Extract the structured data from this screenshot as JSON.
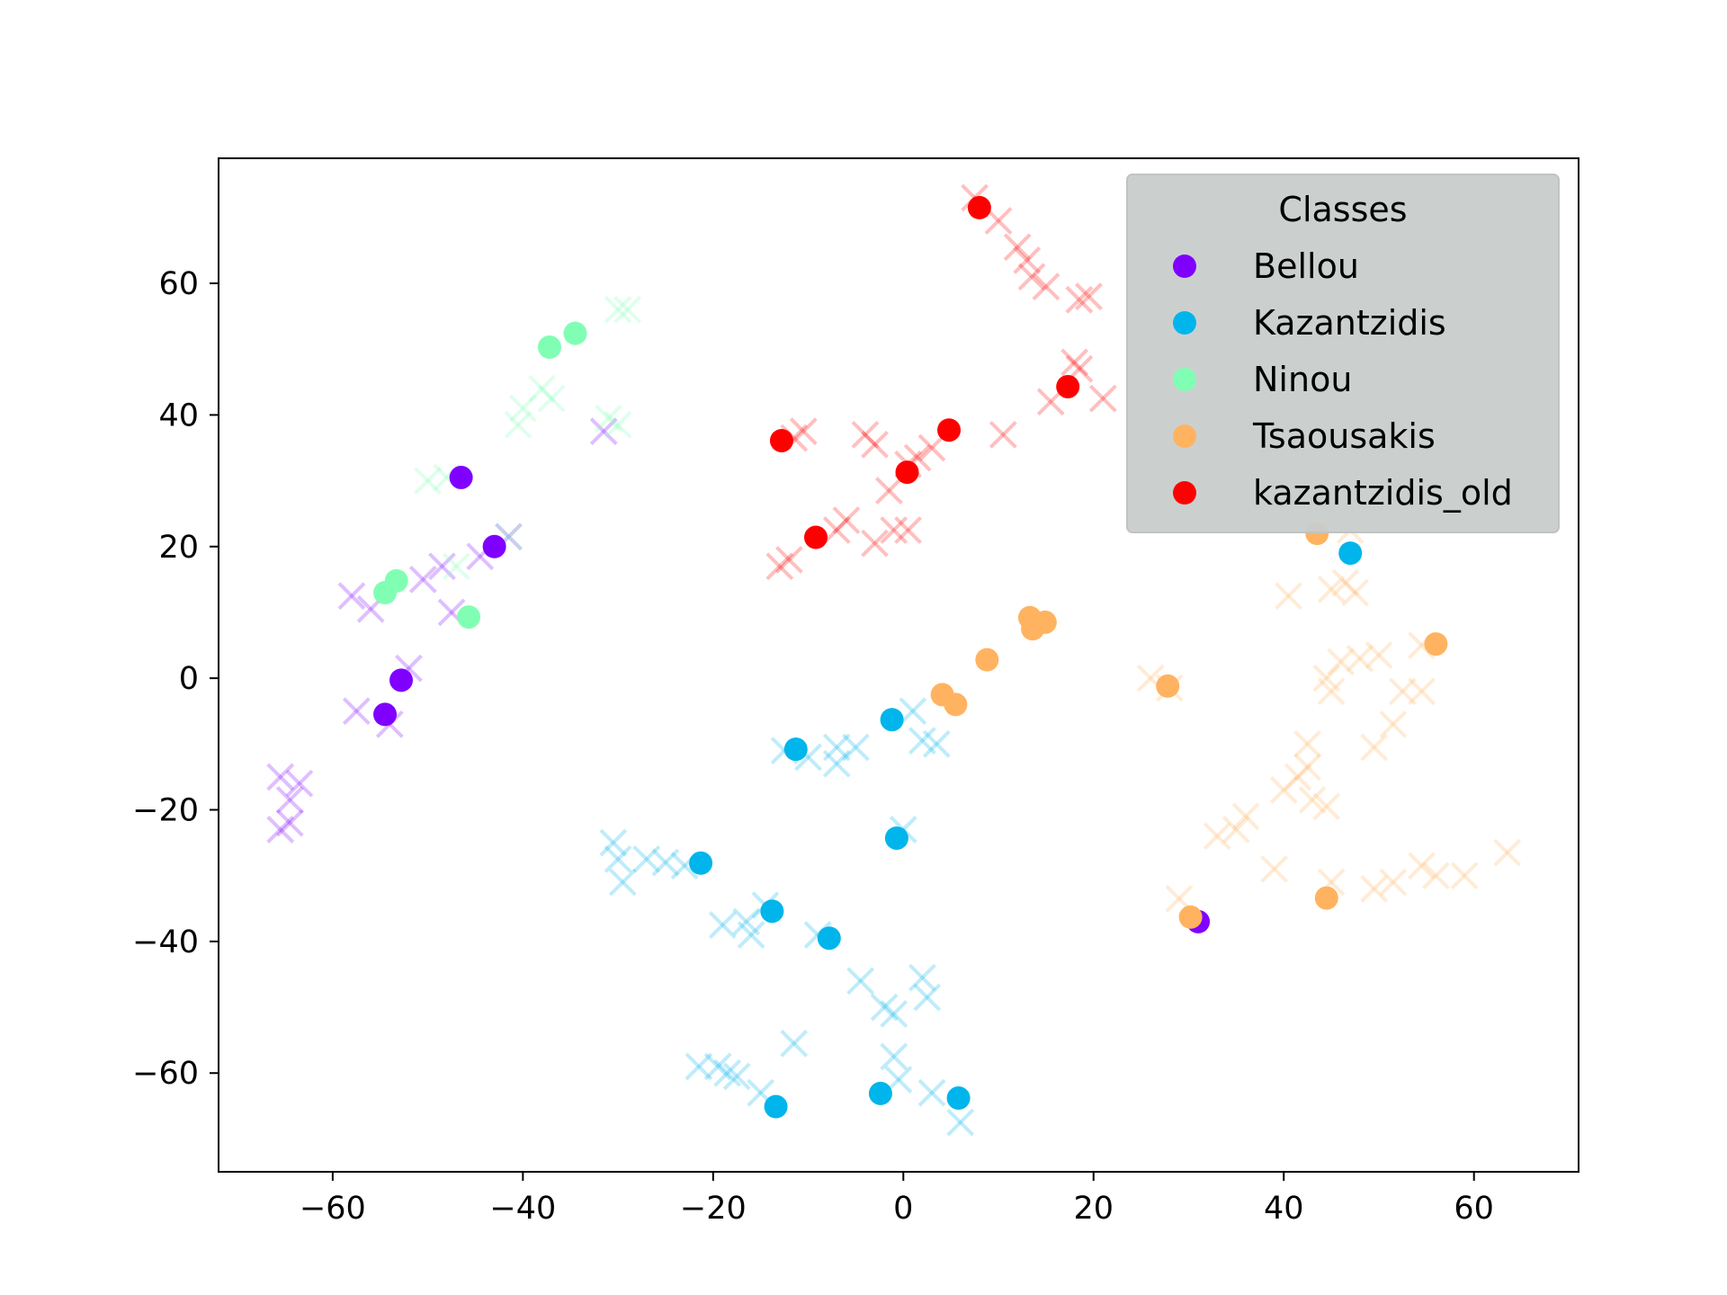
{
  "chart_data": {
    "type": "scatter",
    "title": "",
    "xlabel": "",
    "ylabel": "",
    "xlim": [
      -72,
      71
    ],
    "ylim": [
      -75,
      79
    ],
    "xticks": [
      -60,
      -40,
      -20,
      0,
      20,
      40,
      60
    ],
    "yticks": [
      60,
      40,
      20,
      0,
      -20,
      -40,
      -60
    ],
    "grid": false,
    "legend": {
      "title": "Classes",
      "placement": "top-right"
    },
    "series": [
      {
        "name": "Bellou",
        "color": "#8000ff",
        "points": [
          [
            -46.5,
            30.5
          ],
          [
            -43,
            20
          ],
          [
            -52.8,
            -0.3
          ],
          [
            -54.5,
            -5.5
          ],
          [
            31,
            -37
          ]
        ],
        "background": [
          [
            -58,
            12.5
          ],
          [
            -56,
            10.5
          ],
          [
            -48.5,
            17
          ],
          [
            -47.5,
            10
          ],
          [
            -44.5,
            18.5
          ],
          [
            -41.5,
            21.5
          ],
          [
            -52,
            1.5
          ],
          [
            -57.5,
            -5
          ],
          [
            -54,
            -7
          ],
          [
            -65.5,
            -15
          ],
          [
            -63.5,
            -16
          ],
          [
            -64.5,
            -18.5
          ],
          [
            -65.5,
            -23
          ],
          [
            -64.5,
            -22
          ],
          [
            -31.5,
            37.5
          ],
          [
            -50.5,
            15
          ]
        ]
      },
      {
        "name": "Kazantzidis",
        "color": "#00b5eb",
        "points": [
          [
            -1.2,
            -6.3
          ],
          [
            -11.3,
            -10.8
          ],
          [
            -0.7,
            -24.3
          ],
          [
            -21.3,
            -28.1
          ],
          [
            -13.8,
            -35.4
          ],
          [
            -7.8,
            -39.5
          ],
          [
            -13.4,
            -65.1
          ],
          [
            -2.4,
            -63.1
          ],
          [
            5.8,
            -63.8
          ],
          [
            47,
            19
          ]
        ],
        "background": [
          [
            -12.5,
            -11
          ],
          [
            -10,
            -12
          ],
          [
            -7,
            -10.5
          ],
          [
            -5,
            -10.5
          ],
          [
            -7,
            -13
          ],
          [
            1,
            -5
          ],
          [
            2,
            -9.5
          ],
          [
            3.5,
            -10
          ],
          [
            0,
            -23
          ],
          [
            -30.5,
            -25
          ],
          [
            -30,
            -27.5
          ],
          [
            -27,
            -27.5
          ],
          [
            -25,
            -28
          ],
          [
            -23,
            -28.5
          ],
          [
            -29.5,
            -31
          ],
          [
            -14.5,
            -34.5
          ],
          [
            -19,
            -37.5
          ],
          [
            -16.5,
            -37
          ],
          [
            -16,
            -39
          ],
          [
            -9,
            -39
          ],
          [
            -4.5,
            -46
          ],
          [
            -2,
            -50
          ],
          [
            -1,
            -51
          ],
          [
            2,
            -45.5
          ],
          [
            2.5,
            -48.5
          ],
          [
            -11.5,
            -55.5
          ],
          [
            -21.5,
            -59
          ],
          [
            -19.5,
            -59
          ],
          [
            -18.5,
            -60
          ],
          [
            -17.5,
            -60.5
          ],
          [
            -15,
            -63
          ],
          [
            -1,
            -57.5
          ],
          [
            -0.5,
            -61
          ],
          [
            3,
            -63
          ],
          [
            6,
            -67.5
          ]
        ]
      },
      {
        "name": "Ninou",
        "color": "#80ffb4",
        "points": [
          [
            -37.2,
            50.3
          ],
          [
            -34.5,
            52.4
          ],
          [
            -53.3,
            14.8
          ],
          [
            -54.5,
            13
          ],
          [
            -45.7,
            9.3
          ]
        ],
        "background": [
          [
            -30,
            56
          ],
          [
            -29,
            56
          ],
          [
            -40.5,
            38.5
          ],
          [
            -40,
            41
          ],
          [
            -38,
            44
          ],
          [
            -37,
            42.5
          ],
          [
            -31,
            39.5
          ],
          [
            -30,
            38.5
          ],
          [
            -50,
            30
          ],
          [
            -48,
            30.5
          ],
          [
            -47,
            17
          ],
          [
            -41.5,
            21.5
          ]
        ]
      },
      {
        "name": "Tsaousakis",
        "color": "#ffb360",
        "points": [
          [
            13.3,
            9.2
          ],
          [
            14.9,
            8.5
          ],
          [
            13.6,
            7.5
          ],
          [
            8.8,
            2.8
          ],
          [
            4.1,
            -2.5
          ],
          [
            5.5,
            -4
          ],
          [
            27.8,
            -1.2
          ],
          [
            56,
            5.2
          ],
          [
            43.5,
            22
          ],
          [
            44.5,
            -33.4
          ],
          [
            30.2,
            -36.3
          ]
        ],
        "background": [
          [
            47,
            22.5
          ],
          [
            40.5,
            12.5
          ],
          [
            45,
            13.5
          ],
          [
            47.5,
            13
          ],
          [
            46.5,
            14.5
          ],
          [
            44.5,
            0
          ],
          [
            46,
            2.5
          ],
          [
            45,
            -2
          ],
          [
            50,
            3.5
          ],
          [
            48,
            3
          ],
          [
            54.5,
            5
          ],
          [
            52.5,
            -2
          ],
          [
            54.5,
            -2
          ],
          [
            51.5,
            -7
          ],
          [
            49.5,
            -10.5
          ],
          [
            42.5,
            -10
          ],
          [
            41.5,
            -15
          ],
          [
            42.5,
            -13.5
          ],
          [
            40,
            -17
          ],
          [
            43,
            -18.5
          ],
          [
            44.5,
            -19.5
          ],
          [
            36,
            -21
          ],
          [
            35,
            -23
          ],
          [
            33,
            -24
          ],
          [
            39,
            -29
          ],
          [
            45,
            -31
          ],
          [
            49.5,
            -32
          ],
          [
            51.5,
            -31
          ],
          [
            54.5,
            -28.5
          ],
          [
            56,
            -30
          ],
          [
            59,
            -30
          ],
          [
            63.5,
            -26.5
          ],
          [
            26,
            0
          ],
          [
            28,
            -1.5
          ],
          [
            29,
            -33.5
          ]
        ]
      },
      {
        "name": "kazantzidis_old",
        "color": "#ff0000",
        "points": [
          [
            8,
            71.5
          ],
          [
            -12.8,
            36.1
          ],
          [
            0.4,
            31.3
          ],
          [
            4.8,
            37.7
          ],
          [
            17.3,
            44.3
          ],
          [
            -9.2,
            21.4
          ]
        ],
        "background": [
          [
            7.5,
            73
          ],
          [
            10,
            69.5
          ],
          [
            12,
            65.5
          ],
          [
            13,
            63.5
          ],
          [
            13.5,
            61
          ],
          [
            15,
            59.5
          ],
          [
            18.5,
            57.5
          ],
          [
            19.5,
            58
          ],
          [
            18,
            48
          ],
          [
            18.5,
            47
          ],
          [
            21,
            42.5
          ],
          [
            15.5,
            42
          ],
          [
            10.5,
            37
          ],
          [
            -10.5,
            37.5
          ],
          [
            -11.5,
            36.5
          ],
          [
            -4,
            37
          ],
          [
            -3,
            35.5
          ],
          [
            0.5,
            32.5
          ],
          [
            1.5,
            33.5
          ],
          [
            3,
            35
          ],
          [
            -1.5,
            28.5
          ],
          [
            -13,
            17
          ],
          [
            -12,
            18
          ],
          [
            -7,
            22.5
          ],
          [
            -6,
            24
          ],
          [
            -3,
            20.5
          ],
          [
            -1,
            22.5
          ],
          [
            0.5,
            22.5
          ]
        ]
      }
    ]
  }
}
